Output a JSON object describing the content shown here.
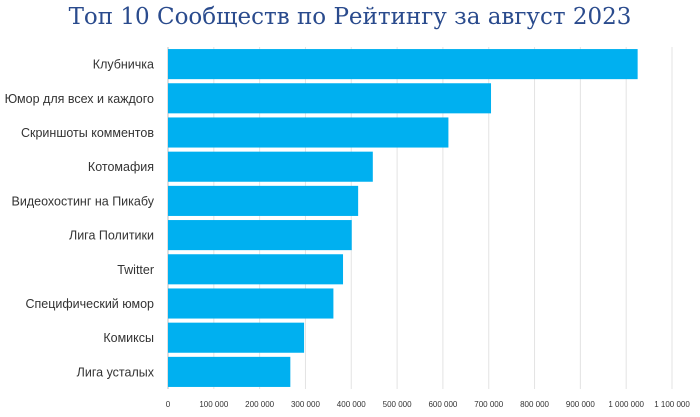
{
  "chart_data": {
    "type": "bar",
    "orientation": "horizontal",
    "title": "Топ 10 Сообществ по Рейтингу за август 2023",
    "categories": [
      "Клубничка",
      "Юмор для всех и каждого",
      "Скриншоты комментов",
      "Котомафия",
      "Видеохостинг на Пикабу",
      "Лига Политики",
      "Twitter",
      "Специфический юмор",
      "Комиксы",
      "Лига усталых"
    ],
    "values": [
      1025000,
      705000,
      612000,
      447000,
      415000,
      401000,
      382000,
      361000,
      297000,
      267000
    ],
    "xlim": [
      0,
      1100000
    ],
    "x_ticks": [
      "0",
      "100 000",
      "200 000",
      "300 000",
      "400 000",
      "500 000",
      "600 000",
      "700 000",
      "800 000",
      "900 000",
      "1 000 000",
      "1 100 000"
    ],
    "grid": "vertical",
    "legend": "none",
    "bar_color": "#00b0f0"
  }
}
